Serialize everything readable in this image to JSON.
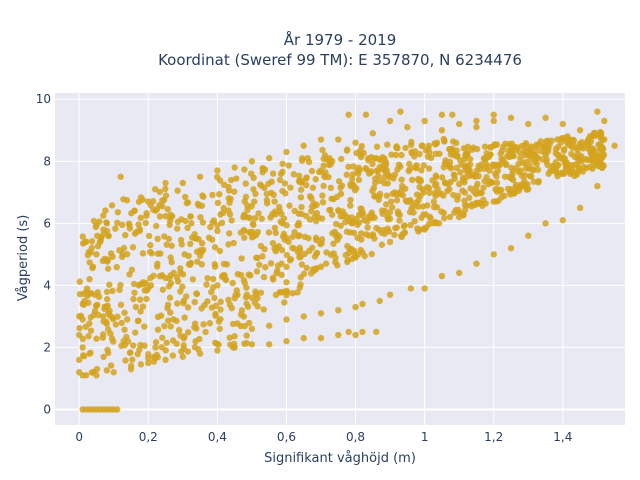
{
  "chart_data": {
    "type": "scatter",
    "title": "År 1979 - 2019",
    "subtitle": "Koordinat (Sweref 99 TM): E 357870, N 6234476",
    "xlabel": "Signifikant våghöjd (m)",
    "ylabel": "Vågperiod (s)",
    "xlim": [
      -0.07,
      1.58
    ],
    "ylim": [
      -0.5,
      10.2
    ],
    "xticks": [
      0,
      0.2,
      0.4,
      0.6,
      0.8,
      1,
      1.2,
      1.4
    ],
    "xtick_labels": [
      "0",
      "0,2",
      "0,4",
      "0,6",
      "0,8",
      "1",
      "1,2",
      "1,4"
    ],
    "yticks": [
      0,
      2,
      4,
      6,
      8,
      10
    ],
    "ytick_labels": [
      "0",
      "2",
      "4",
      "6",
      "8",
      "10"
    ],
    "grid": true,
    "legend": "none",
    "marker_color": "#d4a31f",
    "plot_bg": "#e8e9f2",
    "series": [
      {
        "points": [
          [
            0.01,
            0
          ],
          [
            0.02,
            0
          ],
          [
            0.03,
            0
          ],
          [
            0.04,
            0
          ],
          [
            0.05,
            0
          ],
          [
            0.06,
            0
          ],
          [
            0.07,
            0
          ],
          [
            0.08,
            0
          ],
          [
            0.09,
            0
          ],
          [
            0.1,
            0
          ],
          [
            0.11,
            0
          ],
          [
            0.0,
            1.2
          ],
          [
            0.01,
            1.1
          ],
          [
            0.0,
            1.6
          ],
          [
            0.01,
            2.0
          ],
          [
            0.0,
            2.4
          ],
          [
            0.01,
            2.9
          ],
          [
            0.0,
            3.0
          ],
          [
            0.01,
            3.4
          ],
          [
            0.02,
            3.8
          ],
          [
            0.03,
            4.2
          ],
          [
            0.04,
            4.6
          ],
          [
            0.05,
            5.0
          ],
          [
            0.06,
            5.4
          ],
          [
            0.07,
            5.8
          ],
          [
            0.08,
            6.0
          ],
          [
            0.12,
            7.5
          ],
          [
            0.16,
            6.4
          ],
          [
            0.2,
            6.7
          ],
          [
            0.22,
            7.1
          ],
          [
            0.25,
            7.3
          ],
          [
            0.3,
            7.3
          ],
          [
            0.35,
            7.5
          ],
          [
            0.4,
            7.7
          ],
          [
            0.45,
            7.8
          ],
          [
            0.5,
            8.0
          ],
          [
            0.55,
            8.1
          ],
          [
            0.6,
            8.3
          ],
          [
            0.65,
            8.5
          ],
          [
            0.7,
            8.7
          ],
          [
            0.75,
            8.7
          ],
          [
            0.8,
            8.6
          ],
          [
            0.85,
            8.9
          ],
          [
            0.9,
            9.3
          ],
          [
            0.95,
            9.1
          ],
          [
            1.0,
            9.3
          ],
          [
            1.05,
            9.0
          ],
          [
            1.1,
            9.2
          ],
          [
            1.15,
            9.1
          ],
          [
            1.2,
            9.3
          ],
          [
            1.25,
            9.4
          ],
          [
            1.3,
            9.2
          ],
          [
            1.35,
            9.4
          ],
          [
            1.4,
            9.2
          ],
          [
            1.45,
            9.0
          ],
          [
            1.5,
            9.6
          ],
          [
            1.52,
            9.3
          ],
          [
            0.78,
            9.5
          ],
          [
            0.83,
            9.5
          ],
          [
            0.93,
            9.6
          ],
          [
            1.05,
            9.5
          ],
          [
            1.08,
            9.5
          ],
          [
            1.15,
            9.3
          ],
          [
            1.2,
            9.5
          ],
          [
            0.02,
            1.1
          ],
          [
            0.05,
            1.1
          ],
          [
            0.1,
            1.2
          ],
          [
            0.15,
            1.3
          ],
          [
            0.2,
            1.5
          ],
          [
            0.25,
            1.6
          ],
          [
            0.3,
            1.7
          ],
          [
            0.35,
            1.8
          ],
          [
            0.4,
            1.9
          ],
          [
            0.45,
            2.0
          ],
          [
            0.5,
            2.1
          ],
          [
            0.55,
            2.1
          ],
          [
            0.6,
            2.2
          ],
          [
            0.65,
            2.3
          ],
          [
            0.7,
            2.3
          ],
          [
            0.75,
            2.4
          ],
          [
            0.8,
            2.4
          ],
          [
            0.5,
            2.6
          ],
          [
            0.55,
            2.7
          ],
          [
            0.6,
            2.9
          ],
          [
            0.65,
            3.0
          ],
          [
            0.7,
            3.1
          ],
          [
            0.75,
            3.2
          ],
          [
            0.8,
            3.3
          ],
          [
            0.82,
            3.4
          ],
          [
            0.78,
            2.5
          ],
          [
            0.82,
            2.5
          ],
          [
            0.9,
            3.7
          ],
          [
            0.96,
            3.9
          ],
          [
            1.0,
            3.9
          ],
          [
            1.05,
            4.3
          ],
          [
            1.1,
            4.4
          ],
          [
            1.15,
            4.7
          ],
          [
            1.2,
            5.0
          ],
          [
            1.25,
            5.2
          ],
          [
            1.3,
            5.6
          ],
          [
            1.35,
            6.0
          ],
          [
            1.4,
            6.1
          ],
          [
            1.45,
            6.5
          ],
          [
            1.5,
            7.2
          ],
          [
            0.87,
            3.5
          ],
          [
            0.86,
            2.5
          ],
          [
            0.4,
            4.0
          ],
          [
            0.5,
            3.6
          ],
          [
            0.6,
            4.1
          ],
          [
            0.7,
            4.6
          ],
          [
            0.8,
            4.9
          ],
          [
            0.9,
            5.4
          ],
          [
            1.0,
            5.8
          ],
          [
            1.1,
            6.2
          ],
          [
            1.2,
            6.7
          ],
          [
            1.3,
            7.1
          ],
          [
            1.4,
            7.6
          ],
          [
            1.5,
            8.0
          ],
          [
            1.55,
            8.5
          ],
          [
            1.52,
            8.7
          ]
        ],
        "density_bands": [
          {
            "x0": 0.0,
            "x1": 0.12,
            "ylo0": 1.1,
            "ylo1": 1.3,
            "yhi0": 5.8,
            "yhi1": 6.8
          },
          {
            "x0": 0.12,
            "x1": 0.3,
            "ylo0": 1.3,
            "ylo1": 1.7,
            "yhi0": 6.8,
            "yhi1": 7.3
          },
          {
            "x0": 0.3,
            "x1": 0.5,
            "ylo0": 1.7,
            "ylo1": 2.1,
            "yhi0": 7.3,
            "yhi1": 7.8
          },
          {
            "x0": 0.5,
            "x1": 0.65,
            "ylo0": 3.1,
            "ylo1": 3.6,
            "yhi0": 7.8,
            "yhi1": 8.3
          },
          {
            "x0": 0.65,
            "x1": 0.85,
            "ylo0": 4.3,
            "ylo1": 5.0,
            "yhi0": 8.3,
            "yhi1": 8.6
          },
          {
            "x0": 0.85,
            "x1": 1.1,
            "ylo0": 5.2,
            "ylo1": 6.2,
            "yhi0": 8.5,
            "yhi1": 8.8
          },
          {
            "x0": 1.1,
            "x1": 1.3,
            "ylo0": 6.2,
            "ylo1": 7.1,
            "yhi0": 8.5,
            "yhi1": 8.6
          },
          {
            "x0": 1.3,
            "x1": 1.52,
            "ylo0": 7.1,
            "ylo1": 7.8,
            "yhi0": 8.6,
            "yhi1": 9.0
          }
        ]
      }
    ]
  }
}
